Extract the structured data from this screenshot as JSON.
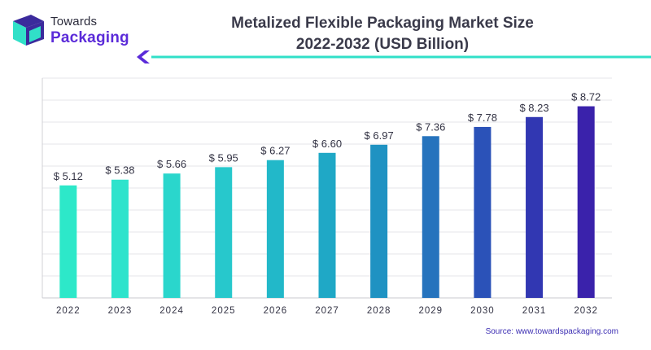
{
  "logo": {
    "line1": "Towards",
    "line2": "Packaging",
    "colors": {
      "dark": "#3b2a9c",
      "teal": "#31e0c8"
    }
  },
  "title_line1": "Metalized Flexible Packaging Market Size",
  "title_line2": "2022-2032 (USD Billion)",
  "source": "Source: www.towardspackaging.com",
  "chart_data": {
    "type": "bar",
    "categories": [
      "2022",
      "2023",
      "2024",
      "2025",
      "2026",
      "2027",
      "2028",
      "2029",
      "2030",
      "2031",
      "2032"
    ],
    "values": [
      5.12,
      5.38,
      5.66,
      5.95,
      6.27,
      6.6,
      6.97,
      7.36,
      7.78,
      8.23,
      8.72
    ],
    "value_labels": [
      "$ 5.12",
      "$ 5.38",
      "$ 5.66",
      "$ 5.95",
      "$ 6.27",
      "$ 6.60",
      "$ 6.97",
      "$ 7.36",
      "$ 7.78",
      "$ 8.23",
      "$ 8.72"
    ],
    "title": "Metalized Flexible Packaging Market Size 2022-2032 (USD Billion)",
    "xlabel": "",
    "ylabel": "",
    "ylim": [
      0,
      10
    ],
    "grid": true,
    "colors": [
      "#2de8c9",
      "#2ee3cc",
      "#2ad6cc",
      "#27c8cc",
      "#22b8c9",
      "#1fa8c6",
      "#1f92c2",
      "#2673bd",
      "#2b52b8",
      "#3137b2",
      "#3a22ab"
    ]
  }
}
